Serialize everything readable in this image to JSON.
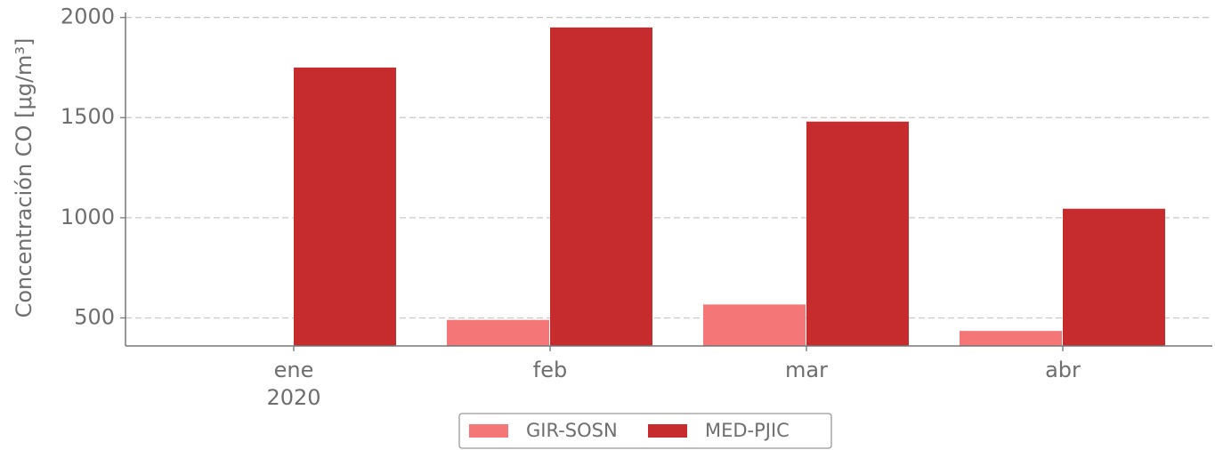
{
  "chart_data": {
    "type": "bar",
    "y_label": "Concentración CO [μg/m³]",
    "categories": [
      "ene",
      "feb",
      "mar",
      "abr"
    ],
    "x_year_label": "2020",
    "series": [
      {
        "name": "GIR-SOSN",
        "color": "#f47676",
        "values": [
          null,
          490,
          567,
          435
        ]
      },
      {
        "name": "MED-PJIC",
        "color": "#c62b2d",
        "values": [
          1750,
          1950,
          1480,
          1045
        ]
      }
    ],
    "ylim": [
      360,
      2025
    ],
    "yticks": [
      500,
      1000,
      1500,
      2000
    ],
    "grid": true,
    "legend": "bottom"
  }
}
